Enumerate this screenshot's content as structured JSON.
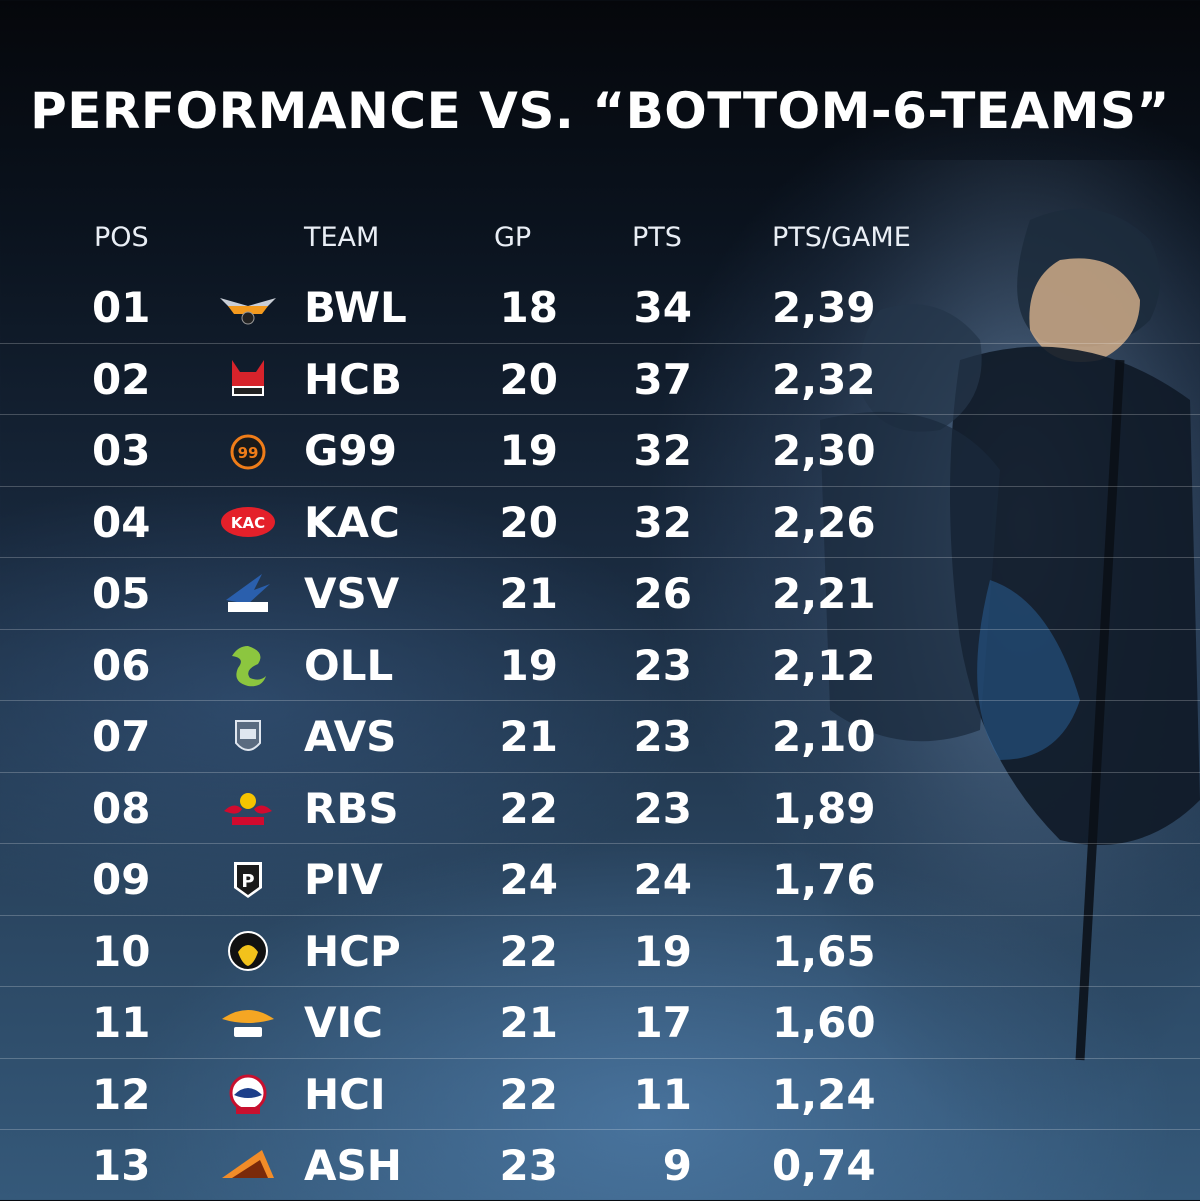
{
  "title": "PERFORMANCE VS. “BOTTOM-6-TEAMS”",
  "columns": {
    "pos": "POS",
    "team": "TEAM",
    "gp": "GP",
    "pts": "PTS",
    "ppg": "PTS/GAME"
  },
  "rows": [
    {
      "pos": "01",
      "team": "BWL",
      "gp": "18",
      "pts": "34",
      "ppg": "2,39",
      "logo": "black-wings-logo-icon",
      "color": "#f39a1e"
    },
    {
      "pos": "02",
      "team": "HCB",
      "gp": "20",
      "pts": "37",
      "ppg": "2,32",
      "logo": "foxes-logo-icon",
      "color": "#d7232b"
    },
    {
      "pos": "03",
      "team": "G99",
      "gp": "19",
      "pts": "32",
      "ppg": "2,30",
      "logo": "graz99ers-logo-icon",
      "color": "#f07d19"
    },
    {
      "pos": "04",
      "team": "KAC",
      "gp": "20",
      "pts": "32",
      "ppg": "2,26",
      "logo": "kac-logo-icon",
      "color": "#e4202a"
    },
    {
      "pos": "05",
      "team": "VSV",
      "gp": "21",
      "pts": "26",
      "ppg": "2,21",
      "logo": "vsv-eagle-logo-icon",
      "color": "#2a5fad"
    },
    {
      "pos": "06",
      "team": "OLL",
      "gp": "19",
      "pts": "23",
      "ppg": "2,12",
      "logo": "dragon-logo-icon",
      "color": "#8cc63f"
    },
    {
      "pos": "07",
      "team": "AVS",
      "gp": "21",
      "pts": "23",
      "ppg": "2,10",
      "logo": "avs-crest-logo-icon",
      "color": "#dfe6ef"
    },
    {
      "pos": "08",
      "team": "RBS",
      "gp": "22",
      "pts": "23",
      "ppg": "1,89",
      "logo": "red-bull-logo-icon",
      "color": "#d20a2e"
    },
    {
      "pos": "09",
      "team": "PIV",
      "gp": "24",
      "pts": "24",
      "ppg": "1,76",
      "logo": "pioneers-logo-icon",
      "color": "#1a1a1a"
    },
    {
      "pos": "10",
      "team": "HCP",
      "gp": "22",
      "pts": "19",
      "ppg": "1,65",
      "logo": "hcp-eagle-logo-icon",
      "color": "#f2c21b"
    },
    {
      "pos": "11",
      "team": "VIC",
      "gp": "21",
      "pts": "17",
      "ppg": "1,60",
      "logo": "capitals-logo-icon",
      "color": "#f5a623"
    },
    {
      "pos": "12",
      "team": "HCI",
      "gp": "22",
      "pts": "11",
      "ppg": "1,24",
      "logo": "haie-logo-icon",
      "color": "#c8102e"
    },
    {
      "pos": "13",
      "team": "ASH",
      "gp": "23",
      "pts": "9",
      "ppg": "0,74",
      "logo": "asiago-logo-icon",
      "color": "#f28c28"
    }
  ]
}
